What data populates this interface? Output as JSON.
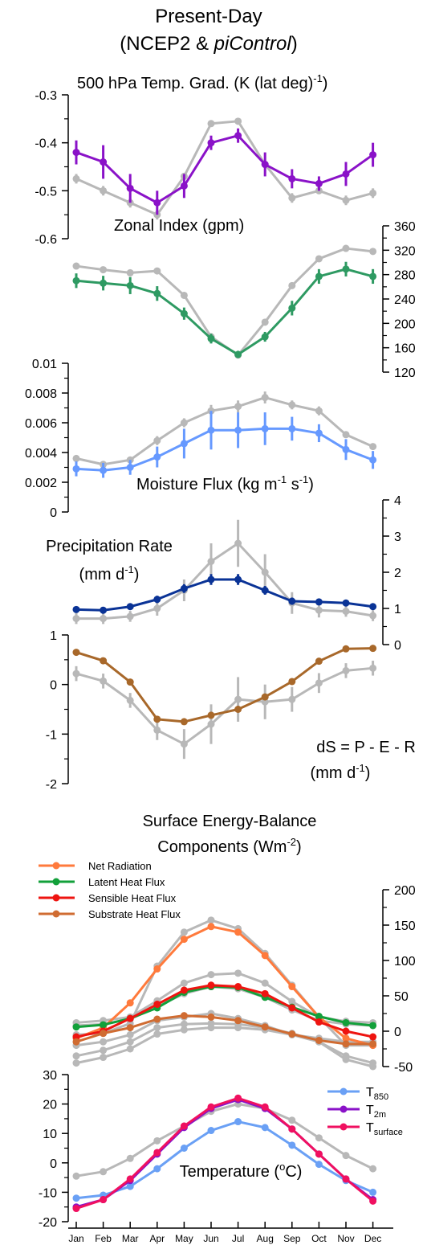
{
  "figure": {
    "title_line1": "Present-Day",
    "title_line2_pre": "(NCEP2 & ",
    "title_line2_em": "piControl",
    "title_line2_post": ")",
    "months": [
      "Jan",
      "Feb",
      "Mar",
      "Apr",
      "May",
      "Jun",
      "Jul",
      "Aug",
      "Sep",
      "Oct",
      "Nov",
      "Dec"
    ],
    "colors": {
      "grey": "#b8b8b8",
      "purple": "#8a12c8",
      "green": "#2e9a62",
      "lightblue": "#6699ff",
      "navy": "#0a3396",
      "brown": "#a8682a",
      "net_rad": "#ff7a3c",
      "latent": "#12a03a",
      "sensible": "#ee1410",
      "substrate": "#d06c32",
      "t850": "#6aa0f5",
      "t2m": "#8a12c8",
      "tsurf": "#f01060"
    }
  },
  "chart_data": [
    {
      "id": "temp_grad",
      "type": "line",
      "title": "500 hPa Temp. Grad. (K (lat deg)",
      "title_sup": "-1",
      "title_post": ")",
      "ylim": [
        -0.6,
        -0.3
      ],
      "ticks": [
        "-0.3",
        "-0.4",
        "-0.5",
        "-0.6"
      ],
      "series": [
        {
          "values": [
            -0.475,
            -0.5,
            -0.525,
            -0.55,
            -0.47,
            -0.36,
            -0.355,
            -0.445,
            -0.515,
            -0.5,
            -0.52,
            -0.505
          ],
          "err": [
            0.01,
            0.01,
            0.01,
            0.01,
            0,
            0,
            0,
            0,
            0.01,
            0,
            0.01,
            0.01
          ]
        },
        {
          "values": [
            -0.42,
            -0.44,
            -0.495,
            -0.525,
            -0.49,
            -0.4,
            -0.385,
            -0.445,
            -0.475,
            -0.485,
            -0.465,
            -0.425
          ],
          "err": [
            0.025,
            0.035,
            0.03,
            0.025,
            0.025,
            0.015,
            0.015,
            0.025,
            0.02,
            0.015,
            0.025,
            0.025
          ]
        }
      ]
    },
    {
      "id": "zonal_index",
      "type": "line",
      "title": "Zonal Index (gpm)",
      "ylim": [
        120,
        360
      ],
      "ticks": [
        "360",
        "320",
        "280",
        "240",
        "200",
        "160",
        "120"
      ],
      "series": [
        {
          "values": [
            294,
            288,
            283,
            286,
            246,
            178,
            148,
            202,
            262,
            306,
            323,
            318
          ],
          "err": [
            5,
            5,
            0,
            0,
            0,
            0,
            0,
            0,
            0,
            0,
            5,
            5
          ]
        },
        {
          "values": [
            270,
            266,
            262,
            249,
            216,
            175,
            149,
            178,
            225,
            277,
            289,
            277
          ],
          "err": [
            12,
            12,
            14,
            12,
            10,
            8,
            6,
            8,
            12,
            12,
            12,
            12
          ]
        }
      ]
    },
    {
      "id": "moisture_flux",
      "type": "line",
      "title": "Moisture Flux (kg m",
      "title_sup1": "-1",
      "title_mid": " s",
      "title_sup2": "-1",
      "title_post": ")",
      "ylim": [
        0,
        0.01
      ],
      "ticks": [
        "0.01",
        "0.008",
        "0.006",
        "0.004",
        "0.002",
        "0"
      ],
      "series": [
        {
          "values": [
            0.0036,
            0.0032,
            0.0035,
            0.0048,
            0.006,
            0.0068,
            0.0071,
            0.0077,
            0.0072,
            0.0068,
            0.0052,
            0.0044
          ],
          "err": [
            0.0002,
            0.0002,
            0.0002,
            0.0003,
            0.0003,
            0.0004,
            0.0004,
            0.0004,
            0.0003,
            0.0003,
            0.0002,
            0.0002
          ]
        },
        {
          "values": [
            0.0029,
            0.0028,
            0.003,
            0.0037,
            0.0046,
            0.0055,
            0.0055,
            0.0056,
            0.0056,
            0.0053,
            0.0042,
            0.0035
          ],
          "err": [
            0.0005,
            0.0005,
            0.0005,
            0.0007,
            0.001,
            0.0013,
            0.0012,
            0.0011,
            0.0008,
            0.0006,
            0.0007,
            0.0006
          ]
        }
      ]
    },
    {
      "id": "precip",
      "type": "line",
      "title_line1": "Precipitation Rate",
      "title_line2": "(mm d",
      "title_sup": "-1",
      "title_post": ")",
      "ylim": [
        0,
        4
      ],
      "ticks": [
        "4",
        "3",
        "2",
        "1",
        "0"
      ],
      "series": [
        {
          "values": [
            0.72,
            0.72,
            0.78,
            1.0,
            1.5,
            2.3,
            2.8,
            2.0,
            1.15,
            0.95,
            0.92,
            0.8
          ],
          "err": [
            0.15,
            0.15,
            0.15,
            0.2,
            0.3,
            0.5,
            0.65,
            0.5,
            0.3,
            0.2,
            0.15,
            0.15
          ]
        },
        {
          "values": [
            0.97,
            0.95,
            1.05,
            1.25,
            1.55,
            1.8,
            1.8,
            1.5,
            1.2,
            1.18,
            1.15,
            1.05
          ],
          "err": [
            0.06,
            0.06,
            0.08,
            0.1,
            0.12,
            0.15,
            0.15,
            0.12,
            0.1,
            0.08,
            0.08,
            0.08
          ]
        }
      ]
    },
    {
      "id": "ds",
      "type": "line",
      "title_line1": "dS = P - E - R",
      "title_line2": "(mm d",
      "title_sup": "-1",
      "title_post": ")",
      "ylim": [
        -2,
        1
      ],
      "ticks": [
        "1",
        "0",
        "-1",
        "-2"
      ],
      "series": [
        {
          "values": [
            0.22,
            0.07,
            -0.32,
            -0.92,
            -1.2,
            -0.8,
            -0.3,
            -0.35,
            -0.3,
            0.03,
            0.28,
            0.33
          ],
          "err": [
            0.15,
            0.15,
            0.15,
            0.2,
            0.3,
            0.4,
            0.45,
            0.35,
            0.25,
            0.2,
            0.15,
            0.15
          ]
        },
        {
          "values": [
            0.65,
            0.48,
            0.05,
            -0.7,
            -0.75,
            -0.62,
            -0.5,
            -0.25,
            0.06,
            0.47,
            0.72,
            0.73
          ],
          "err": [
            0,
            0,
            0,
            0,
            0,
            0,
            0,
            0,
            0,
            0,
            0,
            0
          ]
        }
      ]
    },
    {
      "id": "energy",
      "type": "line",
      "title_line1": "Surface Energy-Balance",
      "title_line2": "Components (Wm",
      "title_sup": "-2",
      "title_post": ")",
      "ylim": [
        -50,
        200
      ],
      "ticks": [
        "200",
        "150",
        "100",
        "50",
        "0",
        "-50"
      ],
      "legend": [
        "Net Radiation",
        "Latent Heat Flux",
        "Sensible Heat Flux",
        "Substrate Heat Flux"
      ],
      "grey_series": [
        [
          -5,
          -3,
          11,
          92,
          140,
          157,
          145,
          110,
          65,
          20,
          -20,
          -20
        ],
        [
          12,
          15,
          20,
          43,
          68,
          80,
          82,
          68,
          42,
          20,
          14,
          12
        ],
        [
          8,
          10,
          17,
          35,
          53,
          63,
          60,
          48,
          30,
          15,
          10,
          8
        ],
        [
          -20,
          -15,
          -5,
          15,
          20,
          25,
          18,
          8,
          -5,
          -10,
          -15,
          -15
        ],
        [
          -35,
          -27,
          -15,
          5,
          10,
          11,
          10,
          5,
          -3,
          -15,
          -35,
          -45
        ],
        [
          -45,
          -37,
          -25,
          -4,
          2,
          5,
          5,
          2,
          -5,
          -15,
          -40,
          -50
        ]
      ],
      "series": [
        {
          "name": "Net Radiation",
          "values": [
            -10,
            5,
            40,
            88,
            130,
            148,
            140,
            107,
            63,
            20,
            -10,
            -20
          ]
        },
        {
          "name": "Latent Heat Flux",
          "values": [
            6,
            9,
            18,
            33,
            55,
            63,
            62,
            48,
            34,
            21,
            12,
            8
          ]
        },
        {
          "name": "Sensible Heat Flux",
          "values": [
            -8,
            0,
            18,
            38,
            58,
            65,
            63,
            53,
            33,
            13,
            0,
            -8
          ]
        },
        {
          "name": "Substrate Heat Flux",
          "values": [
            -15,
            -3,
            5,
            17,
            22,
            20,
            15,
            6,
            -4,
            -13,
            -18,
            -18
          ]
        }
      ]
    },
    {
      "id": "temperature",
      "type": "line",
      "title": "Temperature (",
      "title_sup": "o",
      "title_post": "C)",
      "ylim": [
        -20,
        30
      ],
      "ticks": [
        "30",
        "20",
        "10",
        "0",
        "-10",
        "-20"
      ],
      "legend_base": [
        "T",
        "T",
        "T"
      ],
      "legend_sub": [
        "850",
        "2m",
        "surface"
      ],
      "grey_series": [
        [
          -4.5,
          -3,
          1.5,
          7.5,
          12.5,
          17.5,
          20,
          18.5,
          14.5,
          8.5,
          2.5,
          -2
        ]
      ],
      "series": [
        {
          "name": "T850",
          "values": [
            -12,
            -11,
            -8,
            -2,
            5,
            11,
            14,
            12,
            6,
            -0.5,
            -6,
            -10
          ]
        },
        {
          "name": "T2m",
          "values": [
            -15,
            -12.5,
            -6,
            3,
            12,
            18.5,
            21.5,
            18.5,
            11.5,
            3,
            -5.5,
            -12.5
          ]
        },
        {
          "name": "Tsurface",
          "values": [
            -15.5,
            -12.5,
            -5.5,
            3.5,
            12.5,
            19,
            22,
            19,
            11.5,
            3,
            -5.5,
            -13
          ]
        }
      ],
      "xlabels": [
        "Jan",
        "Feb",
        "Mar",
        "Apr",
        "May",
        "Jun",
        "Jul",
        "Aug",
        "Sep",
        "Oct",
        "Nov",
        "Dec"
      ]
    }
  ]
}
